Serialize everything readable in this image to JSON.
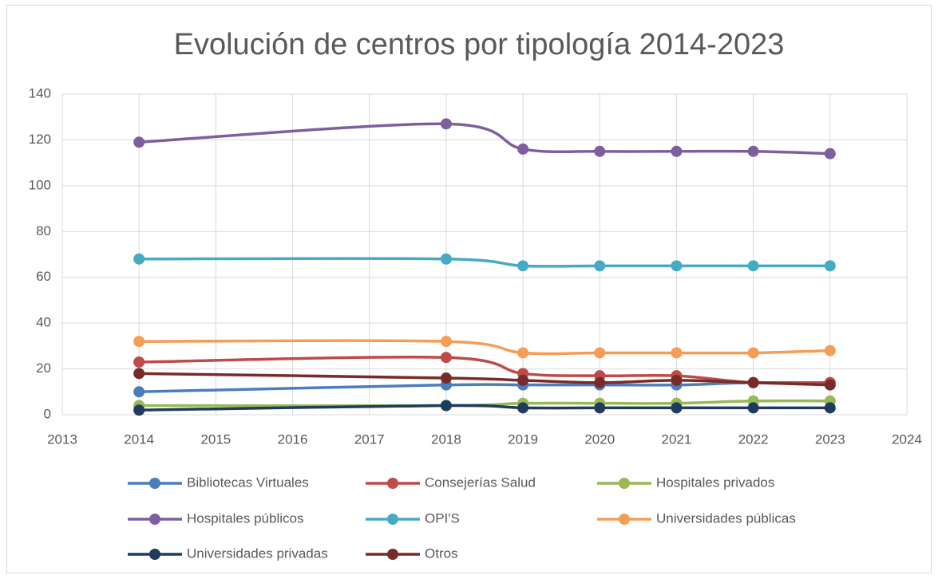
{
  "chart_data": {
    "type": "line",
    "title": "Evolución de centros por tipología 2014-2023",
    "x": [
      2014,
      2018,
      2019,
      2020,
      2021,
      2022,
      2023
    ],
    "xlim": [
      2013,
      2024
    ],
    "xticks": [
      2013,
      2014,
      2015,
      2016,
      2017,
      2018,
      2019,
      2020,
      2021,
      2022,
      2023,
      2024
    ],
    "ylim": [
      0,
      140
    ],
    "yticks": [
      0,
      20,
      40,
      60,
      80,
      100,
      120,
      140
    ],
    "grid": true,
    "smooth": true,
    "legend": "bottom",
    "series": [
      {
        "name": "Bibliotecas Virtuales",
        "color": "#4a7ebb",
        "values": [
          10,
          13,
          13,
          13,
          13,
          14,
          14
        ]
      },
      {
        "name": "Consejerías Salud",
        "color": "#be4b48",
        "values": [
          23,
          25,
          18,
          17,
          17,
          14,
          14
        ]
      },
      {
        "name": "Hospitales privados",
        "color": "#98b954",
        "values": [
          4,
          4,
          5,
          5,
          5,
          6,
          6
        ]
      },
      {
        "name": "Hospitales públicos",
        "color": "#7d5fa0",
        "values": [
          119,
          127,
          116,
          115,
          115,
          115,
          114
        ]
      },
      {
        "name": "OPI'S",
        "color": "#46aac5",
        "values": [
          68,
          68,
          65,
          65,
          65,
          65,
          65
        ]
      },
      {
        "name": "Universidades públicas",
        "color": "#f59d56",
        "values": [
          32,
          32,
          27,
          27,
          27,
          27,
          28
        ]
      },
      {
        "name": "Universidades privadas",
        "color": "#1f3b5e",
        "values": [
          2,
          4,
          3,
          3,
          3,
          3,
          3
        ]
      },
      {
        "name": "Otros",
        "color": "#772c2a",
        "values": [
          18,
          16,
          15,
          14,
          15,
          14,
          13
        ]
      }
    ]
  }
}
